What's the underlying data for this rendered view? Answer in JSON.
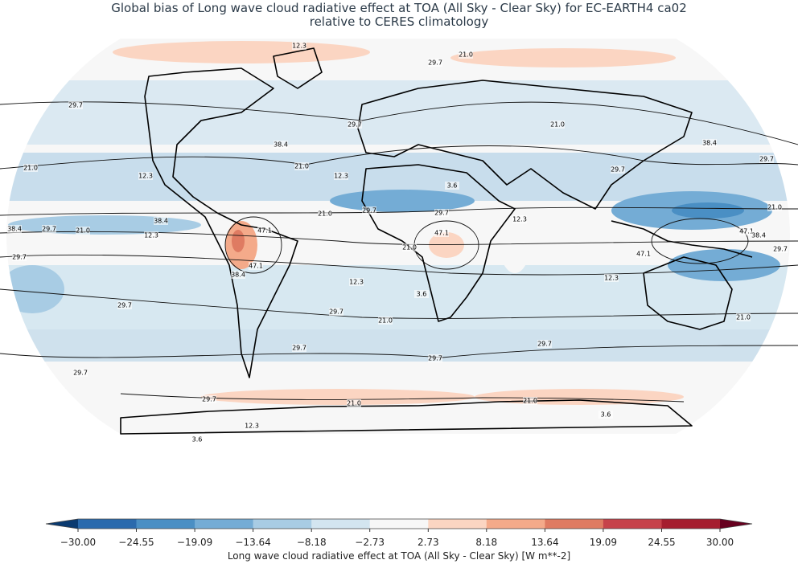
{
  "title_lines": [
    "Global bias of Long wave cloud radiative effect at TOA (All Sky - Clear Sky) for EC-EARTH4 ca02",
    "relative to CERES climatology"
  ],
  "contour_labels": [
    "12.3",
    "21.0",
    "29.7",
    "29.7",
    "29.7",
    "21.0",
    "38.4",
    "38.4",
    "21.0",
    "21.0",
    "12.3",
    "12.3",
    "29.7",
    "29.7",
    "3.6",
    "21.0",
    "29.7",
    "29.7",
    "21.0",
    "38.4",
    "38.4",
    "29.7",
    "21.0",
    "47.1",
    "12.3",
    "47.1",
    "12.3",
    "47.1",
    "38.4",
    "21.0",
    "29.7",
    "47.1",
    "29.7",
    "47.1",
    "38.4",
    "12.3",
    "12.3",
    "3.6",
    "29.7",
    "29.7",
    "21.0",
    "21.0",
    "29.7",
    "29.7",
    "29.7",
    "29.7",
    "29.7",
    "21.0",
    "21.0",
    "12.3",
    "3.6",
    "3.6"
  ],
  "colorbar": {
    "label": "Long wave cloud radiative effect at TOA (All Sky - Clear Sky) [W m**-2]",
    "ticks": [
      {
        "value": -30,
        "label": "−30.00"
      },
      {
        "value": -24.55,
        "label": "−24.55"
      },
      {
        "value": -19.09,
        "label": "−19.09"
      },
      {
        "value": -13.64,
        "label": "−13.64"
      },
      {
        "value": -8.18,
        "label": "−8.18"
      },
      {
        "value": -2.73,
        "label": "−2.73"
      },
      {
        "value": 2.73,
        "label": "2.73"
      },
      {
        "value": 8.18,
        "label": "8.18"
      },
      {
        "value": 13.64,
        "label": "13.64"
      },
      {
        "value": 19.09,
        "label": "19.09"
      },
      {
        "value": 24.55,
        "label": "24.55"
      },
      {
        "value": 30,
        "label": "30.00"
      }
    ],
    "colors": [
      "#2a6aad",
      "#4a8fc4",
      "#74acd5",
      "#a8cce4",
      "#d3e5f0",
      "#f7f7f7",
      "#fbd5c2",
      "#f4aa8a",
      "#df7b62",
      "#c6424a",
      "#a51d2e"
    ],
    "under_color": "#0a3a70",
    "over_color": "#67001f"
  }
}
